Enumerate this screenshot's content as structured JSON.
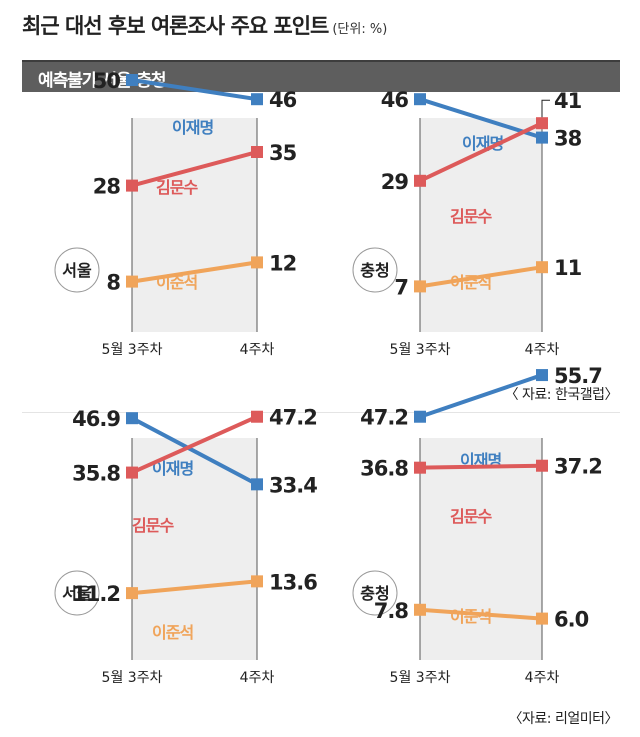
{
  "title": "최근 대선 후보 여론조사 주요 포인트",
  "unit": "(단위: %)",
  "subtitle": "예측불가 서울·충청",
  "colors": {
    "이재명": "#3f7fc0",
    "김문수": "#dd5a5a",
    "이준석": "#f0a45a",
    "band": "#eeeeee",
    "axis": "#555555"
  },
  "sources": [
    "〈 자료: 한국갤럽〉",
    "〈자료: 리얼미터〉"
  ],
  "chart_data": [
    {
      "type": "line",
      "region": "서울",
      "x": [
        "5월 3주차",
        "4주차"
      ],
      "ylim": [
        0,
        60
      ],
      "decimals": 0,
      "series": [
        {
          "name": "이재명",
          "values": [
            50,
            46
          ]
        },
        {
          "name": "김문수",
          "values": [
            28,
            35
          ]
        },
        {
          "name": "이준석",
          "values": [
            8,
            12
          ]
        }
      ]
    },
    {
      "type": "line",
      "region": "충청",
      "x": [
        "5월 3주차",
        "4주차"
      ],
      "ylim": [
        0,
        60
      ],
      "decimals": 0,
      "series": [
        {
          "name": "이재명",
          "values": [
            46,
            38
          ]
        },
        {
          "name": "김문수",
          "values": [
            29,
            41
          ]
        },
        {
          "name": "이준석",
          "values": [
            7,
            11
          ]
        }
      ]
    },
    {
      "type": "line",
      "region": "서울",
      "x": [
        "5월 3주차",
        "4주차"
      ],
      "ylim": [
        0,
        60
      ],
      "decimals": 1,
      "series": [
        {
          "name": "이재명",
          "values": [
            46.9,
            33.4
          ]
        },
        {
          "name": "김문수",
          "values": [
            35.8,
            47.2
          ]
        },
        {
          "name": "이준석",
          "values": [
            11.2,
            13.6
          ]
        }
      ]
    },
    {
      "type": "line",
      "region": "충청",
      "x": [
        "5월 3주차",
        "4주차"
      ],
      "ylim": [
        0,
        60
      ],
      "decimals": 1,
      "series": [
        {
          "name": "이재명",
          "values": [
            47.2,
            55.7
          ]
        },
        {
          "name": "김문수",
          "values": [
            36.8,
            37.2
          ]
        },
        {
          "name": "이준석",
          "values": [
            7.8,
            6.0
          ]
        }
      ]
    }
  ]
}
